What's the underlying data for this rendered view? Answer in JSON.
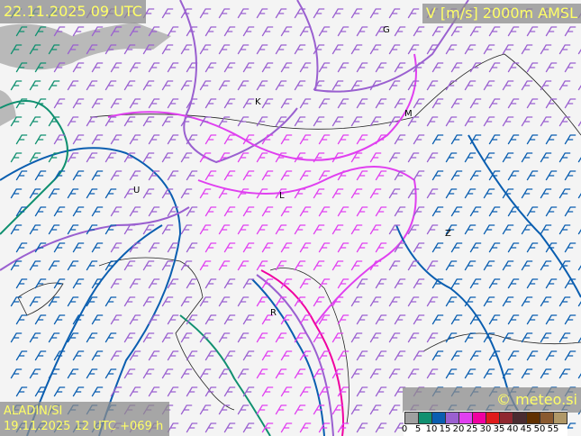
{
  "valid_time": "22.11.2025 09 UTC",
  "parameter": "V [m/s] 2000m AMSL",
  "model": "ALADIN/SI",
  "run": "19.11.2025 12 UTC +069 h",
  "brand": "© meteo.si",
  "legend": {
    "colors": [
      "#a0a0a0",
      "#109070",
      "#0a5eb0",
      "#9a60d0",
      "#e040f0",
      "#f000a0",
      "#e01c1c",
      "#902830",
      "#4a2c30",
      "#603000",
      "#8a5a30",
      "#b09868"
    ],
    "labels": [
      "0",
      "5",
      "10",
      "15",
      "20",
      "25",
      "30",
      "35",
      "40",
      "45",
      "50",
      "55"
    ]
  },
  "cities": [
    {
      "label": "G"
    },
    {
      "label": "K"
    },
    {
      "label": "M"
    },
    {
      "label": "U"
    },
    {
      "label": "L"
    },
    {
      "label": "Z"
    },
    {
      "label": "R"
    }
  ]
}
